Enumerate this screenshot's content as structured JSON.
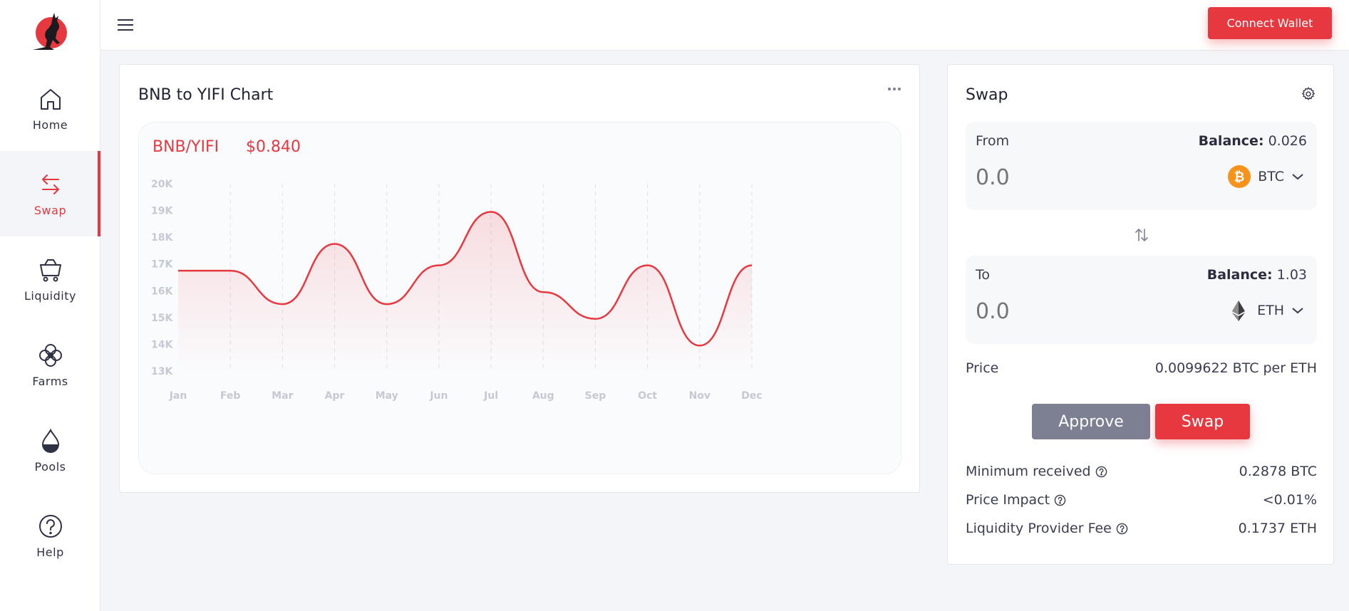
{
  "sidebar": {
    "items": [
      {
        "label": "Home",
        "icon": "home-icon"
      },
      {
        "label": "Swap",
        "icon": "swap-arrows-icon",
        "active": true
      },
      {
        "label": "Liquidity",
        "icon": "cart-icon"
      },
      {
        "label": "Farms",
        "icon": "flower-icon"
      },
      {
        "label": "Pools",
        "icon": "drop-icon"
      },
      {
        "label": "Help",
        "icon": "question-icon"
      }
    ]
  },
  "topbar": {
    "connect_wallet": "Connect Wallet"
  },
  "chart_card": {
    "title": "BNB to YIFI Chart",
    "pair": "BNB/YIFI",
    "price": "$0.840"
  },
  "chart_data": {
    "type": "area",
    "categories": [
      "Jan",
      "Feb",
      "Mar",
      "Apr",
      "May",
      "Jun",
      "Jul",
      "Aug",
      "Sep",
      "Oct",
      "Nov",
      "Dec"
    ],
    "series": [
      {
        "values": [
          16750,
          16750,
          15500,
          17750,
          15500,
          16950,
          18950,
          15950,
          14950,
          16950,
          13950,
          16950
        ]
      }
    ],
    "ylim": [
      13000,
      20000
    ],
    "yticks": [
      "13K",
      "14K",
      "15K",
      "16K",
      "17K",
      "18K",
      "19K",
      "20K"
    ],
    "grid": "vertical-dashed",
    "color": "#e8383f"
  },
  "swap": {
    "title": "Swap",
    "from": {
      "label": "From",
      "balance_label": "Balance:",
      "balance_value": "0.026",
      "placeholder": "0.0",
      "token": "BTC"
    },
    "to": {
      "label": "To",
      "balance_label": "Balance:",
      "balance_value": "1.03",
      "placeholder": "0.0",
      "token": "ETH"
    },
    "price_label": "Price",
    "price_value": "0.0099622 BTC per ETH",
    "approve": "Approve",
    "swap": "Swap",
    "info": [
      {
        "label": "Minimum received",
        "value": "0.2878 BTC"
      },
      {
        "label": "Price Impact",
        "value": "<0.01%"
      },
      {
        "label": "Liquidity Provider Fee",
        "value": "0.1737 ETH"
      }
    ]
  },
  "colors": {
    "accent": "#e8383f",
    "approve": "#7d7f92",
    "bitcoin": "#f7931a"
  }
}
